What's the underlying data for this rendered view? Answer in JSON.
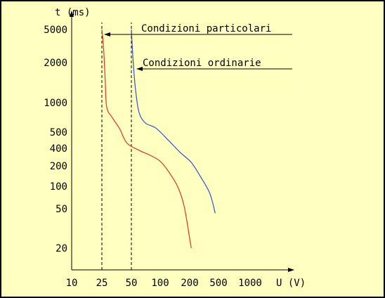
{
  "chart_data": {
    "type": "line",
    "title": "",
    "xlabel": "U (V)",
    "ylabel": "t (ms)",
    "x_scale": "log",
    "y_scale": "log",
    "x_ticks": [
      "10",
      "25",
      "50",
      "100",
      "200",
      "500",
      "1000"
    ],
    "y_ticks": [
      "5000",
      "2000",
      "1000",
      "500",
      "400",
      "200",
      "100",
      "50",
      "20"
    ],
    "grid": false,
    "series": [
      {
        "name": "Condizioni particolari",
        "color": "#e83020",
        "asymptote_x": 25,
        "points": [
          [
            25,
            5000
          ],
          [
            26,
            3000
          ],
          [
            27,
            1500
          ],
          [
            28,
            900
          ],
          [
            32,
            700
          ],
          [
            38,
            540
          ],
          [
            45,
            430
          ],
          [
            60,
            370
          ],
          [
            80,
            300
          ],
          [
            100,
            240
          ],
          [
            120,
            170
          ],
          [
            150,
            100
          ],
          [
            175,
            55
          ],
          [
            200,
            25
          ],
          [
            210,
            20
          ]
        ]
      },
      {
        "name": "Condizioni ordinarie",
        "color": "#3050d0",
        "asymptote_x": 50,
        "points": [
          [
            50,
            5000
          ],
          [
            52,
            2200
          ],
          [
            55,
            1300
          ],
          [
            60,
            800
          ],
          [
            70,
            620
          ],
          [
            90,
            550
          ],
          [
            120,
            450
          ],
          [
            160,
            340
          ],
          [
            210,
            230
          ],
          [
            280,
            140
          ],
          [
            380,
            80
          ],
          [
            450,
            45
          ]
        ]
      }
    ],
    "annotations": [
      {
        "text": "Condizioni particolari",
        "series": 0
      },
      {
        "text": "Condizioni ordinarie",
        "series": 1
      }
    ]
  }
}
